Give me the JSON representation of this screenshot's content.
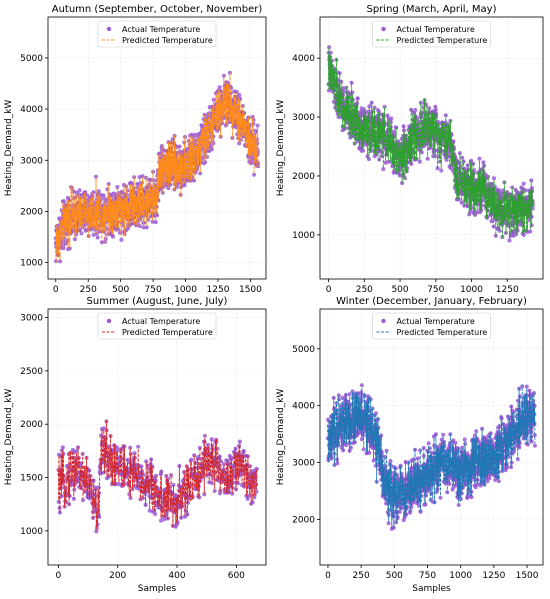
{
  "chart_data": [
    {
      "type": "scatter",
      "title": "Autumn (September, October, November)",
      "xlabel": "",
      "ylabel": "Heating_Demand_kW",
      "xlim": [
        -60,
        1620
      ],
      "ylim": [
        680,
        5800
      ],
      "xticks": [
        0,
        250,
        500,
        750,
        1000,
        1250,
        1500
      ],
      "yticks": [
        1000,
        2000,
        3000,
        4000,
        5000
      ],
      "grid": true,
      "legend": "top-center",
      "n": 1560,
      "segments": [
        [
          0,
          1400
        ],
        [
          100,
          1900
        ],
        [
          300,
          2000
        ],
        [
          500,
          2050
        ],
        [
          700,
          2200
        ],
        [
          780,
          2250
        ],
        [
          800,
          2850
        ],
        [
          1000,
          2900
        ],
        [
          1100,
          3150
        ],
        [
          1200,
          3650
        ],
        [
          1300,
          4200
        ],
        [
          1400,
          3950
        ],
        [
          1500,
          3300
        ],
        [
          1560,
          3150
        ]
      ],
      "noise": 330,
      "series": [
        {
          "name": "Actual Temperature",
          "kind": "scatter",
          "color": "#9b59d6"
        },
        {
          "name": "Predicted Temperature",
          "kind": "line",
          "color": "#ff8c1a"
        }
      ]
    },
    {
      "type": "scatter",
      "title": "Spring (March, April, May)",
      "xlabel": "",
      "ylabel": "Heating_Demand_kW",
      "xlim": [
        -60,
        1500
      ],
      "ylim": [
        250,
        4700
      ],
      "xticks": [
        0,
        250,
        500,
        750,
        1000,
        1250
      ],
      "yticks": [
        1000,
        2000,
        3000,
        4000
      ],
      "grid": true,
      "legend": "top-center",
      "n": 1430,
      "segments": [
        [
          0,
          3800
        ],
        [
          100,
          3150
        ],
        [
          250,
          2800
        ],
        [
          400,
          2650
        ],
        [
          500,
          2300
        ],
        [
          600,
          2700
        ],
        [
          700,
          2800
        ],
        [
          850,
          2600
        ],
        [
          900,
          1950
        ],
        [
          1000,
          1850
        ],
        [
          1100,
          1750
        ],
        [
          1200,
          1450
        ],
        [
          1300,
          1400
        ],
        [
          1430,
          1500
        ]
      ],
      "noise": 300,
      "series": [
        {
          "name": "Actual Temperature",
          "kind": "scatter",
          "color": "#9b59d6"
        },
        {
          "name": "Predicted Temperature",
          "kind": "line",
          "color": "#2ca02c"
        }
      ]
    },
    {
      "type": "scatter",
      "title": "Summer (August, June, July)",
      "xlabel": "Samples",
      "ylabel": "Heating_Demand_kW",
      "xlim": [
        -35,
        700
      ],
      "ylim": [
        680,
        3080
      ],
      "xticks": [
        0,
        200,
        400,
        600
      ],
      "yticks": [
        1000,
        1500,
        2000,
        2500,
        3000
      ],
      "grid": true,
      "legend": "top-center",
      "n": 670,
      "segments": [
        [
          0,
          1400
        ],
        [
          60,
          1600
        ],
        [
          100,
          1450
        ],
        [
          130,
          1150
        ],
        [
          150,
          1800
        ],
        [
          200,
          1600
        ],
        [
          300,
          1450
        ],
        [
          350,
          1300
        ],
        [
          400,
          1250
        ],
        [
          450,
          1450
        ],
        [
          500,
          1700
        ],
        [
          560,
          1500
        ],
        [
          620,
          1600
        ],
        [
          670,
          1450
        ]
      ],
      "noise": 180,
      "series": [
        {
          "name": "Actual Temperature",
          "kind": "scatter",
          "color": "#9b59d6"
        },
        {
          "name": "Predicted Temperature",
          "kind": "line",
          "color": "#d62728"
        }
      ]
    },
    {
      "type": "scatter",
      "title": "Winter (December, January, February)",
      "xlabel": "Samples",
      "ylabel": "Heating_Demand_kW",
      "xlim": [
        -60,
        1620
      ],
      "ylim": [
        1200,
        5700
      ],
      "xticks": [
        0,
        250,
        500,
        750,
        1000,
        1250,
        1500
      ],
      "yticks": [
        2000,
        3000,
        4000,
        5000
      ],
      "grid": true,
      "legend": "top-center",
      "n": 1560,
      "segments": [
        [
          0,
          3300
        ],
        [
          100,
          3700
        ],
        [
          250,
          3800
        ],
        [
          350,
          3500
        ],
        [
          450,
          2500
        ],
        [
          550,
          2400
        ],
        [
          700,
          2700
        ],
        [
          800,
          2900
        ],
        [
          900,
          3000
        ],
        [
          1000,
          2800
        ],
        [
          1100,
          2950
        ],
        [
          1250,
          3100
        ],
        [
          1400,
          3500
        ],
        [
          1500,
          3900
        ],
        [
          1560,
          3600
        ]
      ],
      "noise": 350,
      "series": [
        {
          "name": "Actual Temperature",
          "kind": "scatter",
          "color": "#9b59d6"
        },
        {
          "name": "Predicted Temperature",
          "kind": "line",
          "color": "#1f77b4"
        }
      ]
    }
  ]
}
